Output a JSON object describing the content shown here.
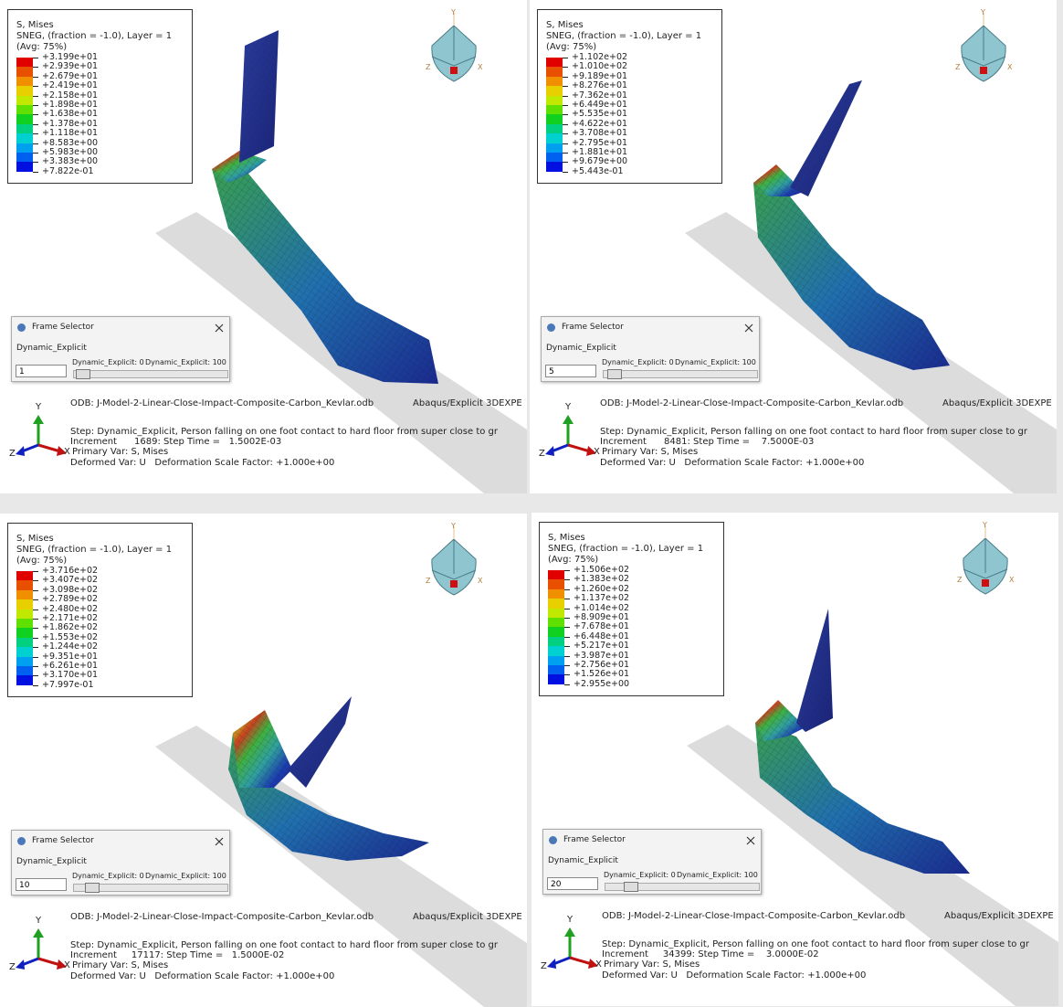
{
  "panels": [
    {
      "legend": {
        "title": "S, Mises",
        "subtitle": "SNEG, (fraction = -1.0), Layer = 1",
        "average": "(Avg: 75%)",
        "values": [
          "+3.199e+01",
          "+2.939e+01",
          "+2.679e+01",
          "+2.419e+01",
          "+2.158e+01",
          "+1.898e+01",
          "+1.638e+01",
          "+1.378e+01",
          "+1.118e+01",
          "+8.583e+00",
          "+5.983e+00",
          "+3.383e+00",
          "+7.822e-01"
        ]
      },
      "frame_selector": {
        "title": "Frame Selector",
        "step": "Dynamic_Explicit",
        "frame": "1",
        "slider_min": "Dynamic_Explicit: 0",
        "slider_max": "Dynamic_Explicit: 100"
      },
      "info": {
        "odb": "ODB: J-Model-2-Linear-Close-Impact-Composite-Carbon_Kevlar.odb",
        "product": "Abaqus/Explicit 3DEXPE",
        "step": "Step: Dynamic_Explicit, Person falling on one foot contact to hard floor from super close to gr",
        "increment": "Increment      1689: Step Time =   1.5002E-03",
        "primary_var": "Primary Var: S, Mises",
        "deformed_var": "Deformed Var: U   Deformation Scale Factor: +1.000e+00"
      },
      "triad": {
        "y": "Y",
        "z": "Z",
        "x": "X"
      },
      "view_cube": {
        "y": "Y",
        "z": "Z",
        "x": "X"
      }
    },
    {
      "legend": {
        "title": "S, Mises",
        "subtitle": "SNEG, (fraction = -1.0), Layer = 1",
        "average": "(Avg: 75%)",
        "values": [
          "+1.102e+02",
          "+1.010e+02",
          "+9.189e+01",
          "+8.276e+01",
          "+7.362e+01",
          "+6.449e+01",
          "+5.535e+01",
          "+4.622e+01",
          "+3.708e+01",
          "+2.795e+01",
          "+1.881e+01",
          "+9.679e+00",
          "+5.443e-01"
        ]
      },
      "frame_selector": {
        "title": "Frame Selector",
        "step": "Dynamic_Explicit",
        "frame": "5",
        "slider_min": "Dynamic_Explicit: 0",
        "slider_max": "Dynamic_Explicit: 100"
      },
      "info": {
        "odb": "ODB: J-Model-2-Linear-Close-Impact-Composite-Carbon_Kevlar.odb",
        "product": "Abaqus/Explicit 3DEXPE",
        "step": "Step: Dynamic_Explicit, Person falling on one foot contact to hard floor from super close to gr",
        "increment": "Increment      8481: Step Time =    7.5000E-03",
        "primary_var": "Primary Var: S, Mises",
        "deformed_var": "Deformed Var: U   Deformation Scale Factor: +1.000e+00"
      },
      "triad": {
        "y": "Y",
        "z": "Z",
        "x": "X"
      },
      "view_cube": {
        "y": "Y",
        "z": "Z",
        "x": "X"
      }
    },
    {
      "legend": {
        "title": "S, Mises",
        "subtitle": "SNEG, (fraction = -1.0), Layer = 1",
        "average": "(Avg: 75%)",
        "values": [
          "+3.716e+02",
          "+3.407e+02",
          "+3.098e+02",
          "+2.789e+02",
          "+2.480e+02",
          "+2.171e+02",
          "+1.862e+02",
          "+1.553e+02",
          "+1.244e+02",
          "+9.351e+01",
          "+6.261e+01",
          "+3.170e+01",
          "+7.997e-01"
        ]
      },
      "frame_selector": {
        "title": "Frame Selector",
        "step": "Dynamic_Explicit",
        "frame": "10",
        "slider_min": "Dynamic_Explicit: 0",
        "slider_max": "Dynamic_Explicit: 100"
      },
      "info": {
        "odb": "ODB: J-Model-2-Linear-Close-Impact-Composite-Carbon_Kevlar.odb",
        "product": "Abaqus/Explicit 3DEXPE",
        "step": "Step: Dynamic_Explicit, Person falling on one foot contact to hard floor from super close to gr",
        "increment": "Increment     17117: Step Time =   1.5000E-02",
        "primary_var": "Primary Var: S, Mises",
        "deformed_var": "Deformed Var: U   Deformation Scale Factor: +1.000e+00"
      },
      "triad": {
        "y": "Y",
        "z": "Z",
        "x": "X"
      },
      "view_cube": {
        "y": "Y",
        "z": "Z",
        "x": "X"
      }
    },
    {
      "legend": {
        "title": "S, Mises",
        "subtitle": "SNEG, (fraction = -1.0), Layer = 1",
        "average": "(Avg: 75%)",
        "values": [
          "+1.506e+02",
          "+1.383e+02",
          "+1.260e+02",
          "+1.137e+02",
          "+1.014e+02",
          "+8.909e+01",
          "+7.678e+01",
          "+6.448e+01",
          "+5.217e+01",
          "+3.987e+01",
          "+2.756e+01",
          "+1.526e+01",
          "+2.955e+00"
        ]
      },
      "frame_selector": {
        "title": "Frame Selector",
        "step": "Dynamic_Explicit",
        "frame": "20",
        "slider_min": "Dynamic_Explicit: 0",
        "slider_max": "Dynamic_Explicit: 100"
      },
      "info": {
        "odb": "ODB: J-Model-2-Linear-Close-Impact-Composite-Carbon_Kevlar.odb",
        "product": "Abaqus/Explicit 3DEXPE",
        "step": "Step: Dynamic_Explicit, Person falling on one foot contact to hard floor from super close to gr",
        "increment": "Increment     34399: Step Time =    3.0000E-02",
        "primary_var": "Primary Var: S, Mises",
        "deformed_var": "Deformed Var: U   Deformation Scale Factor: +1.000e+00"
      },
      "triad": {
        "y": "Y",
        "z": "Z",
        "x": "X"
      },
      "view_cube": {
        "y": "Y",
        "z": "Z",
        "x": "X"
      }
    }
  ]
}
